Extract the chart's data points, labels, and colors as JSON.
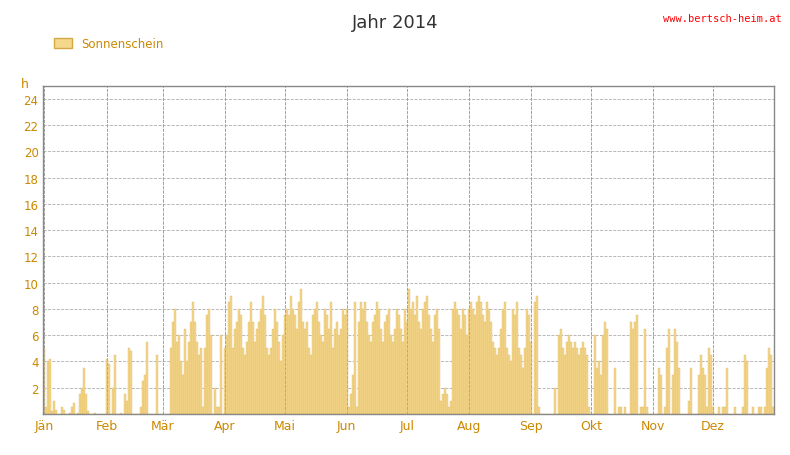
{
  "title": "Jahr 2014",
  "ylabel": "h",
  "legend_label": "Sonnenschein",
  "bar_color": "#f5d88e",
  "bar_edge_color": "#d4a843",
  "background_color": "#ffffff",
  "plot_bg_color": "#ffffff",
  "grid_color": "#999999",
  "title_color": "#333333",
  "label_color": "#cc8800",
  "watermark": "www.bertsch-heim.at",
  "watermark_color": "#ff0000",
  "ylim": [
    0,
    25
  ],
  "yticks": [
    0,
    2,
    4,
    6,
    8,
    10,
    12,
    14,
    16,
    18,
    20,
    22,
    24
  ],
  "month_labels": [
    "Jän",
    "Feb",
    "Mär",
    "Apr",
    "Mai",
    "Jun",
    "Jul",
    "Aug",
    "Sep",
    "Okt",
    "Nov",
    "Dez"
  ],
  "month_starts": [
    0,
    31,
    59,
    90,
    120,
    151,
    181,
    212,
    243,
    273,
    304,
    334
  ],
  "sunshine_hours": [
    5.0,
    0.5,
    4.0,
    4.2,
    0.2,
    1.0,
    0.3,
    0.0,
    0.0,
    0.5,
    0.3,
    0.0,
    0.0,
    0.1,
    0.5,
    0.8,
    0.0,
    0.1,
    1.5,
    2.0,
    3.5,
    1.5,
    0.2,
    0.0,
    0.0,
    0.1,
    0.0,
    0.0,
    0.0,
    0.0,
    0.0,
    4.2,
    3.8,
    0.0,
    2.0,
    4.5,
    0.0,
    0.0,
    0.1,
    0.0,
    1.5,
    1.0,
    5.0,
    4.8,
    0.0,
    0.0,
    0.0,
    0.0,
    0.5,
    2.5,
    3.0,
    5.5,
    0.0,
    0.0,
    0.0,
    0.0,
    4.5,
    0.0,
    0.0,
    0.0,
    0.0,
    0.0,
    0.0,
    5.0,
    7.0,
    8.0,
    5.5,
    6.0,
    4.0,
    3.0,
    6.5,
    4.0,
    5.5,
    7.0,
    8.5,
    7.0,
    5.5,
    4.5,
    5.0,
    0.5,
    5.0,
    7.5,
    8.0,
    6.0,
    0.0,
    2.0,
    0.5,
    0.5,
    6.0,
    0.0,
    5.0,
    6.0,
    8.5,
    9.0,
    5.0,
    6.5,
    7.0,
    8.0,
    7.5,
    5.0,
    4.5,
    5.5,
    7.0,
    8.5,
    7.0,
    5.5,
    6.5,
    7.0,
    8.0,
    9.0,
    7.5,
    5.0,
    4.5,
    5.0,
    6.5,
    8.0,
    7.0,
    5.5,
    4.0,
    6.0,
    7.5,
    8.0,
    7.5,
    9.0,
    8.0,
    7.5,
    6.5,
    8.5,
    9.5,
    7.0,
    6.5,
    7.0,
    5.0,
    4.5,
    7.5,
    8.0,
    8.5,
    7.0,
    6.0,
    5.5,
    8.0,
    7.5,
    6.5,
    8.5,
    5.0,
    6.5,
    7.0,
    6.0,
    6.5,
    8.0,
    7.5,
    8.0,
    0.5,
    1.5,
    3.0,
    8.5,
    0.5,
    7.0,
    8.5,
    8.0,
    8.5,
    7.0,
    6.0,
    5.5,
    7.0,
    7.5,
    8.5,
    8.0,
    6.5,
    5.5,
    7.0,
    7.5,
    8.0,
    6.0,
    5.5,
    6.5,
    8.0,
    7.5,
    6.5,
    5.5,
    8.0,
    7.0,
    9.5,
    8.0,
    8.5,
    7.5,
    9.0,
    7.0,
    6.5,
    8.0,
    8.5,
    9.0,
    7.5,
    6.5,
    5.5,
    7.5,
    8.0,
    6.5,
    1.0,
    1.5,
    2.0,
    1.5,
    0.5,
    1.0,
    8.0,
    8.5,
    8.0,
    7.5,
    6.5,
    8.0,
    7.5,
    6.0,
    8.0,
    8.5,
    8.0,
    7.5,
    8.5,
    9.0,
    8.5,
    7.5,
    7.0,
    8.5,
    8.0,
    7.0,
    5.5,
    5.0,
    4.5,
    5.0,
    6.5,
    8.0,
    8.5,
    5.0,
    4.5,
    4.0,
    8.0,
    7.5,
    8.5,
    5.0,
    4.5,
    3.5,
    5.0,
    8.0,
    7.5,
    5.5,
    0.0,
    8.5,
    9.0,
    0.5,
    0.0,
    0.0,
    0.0,
    0.0,
    0.0,
    0.0,
    0.0,
    2.0,
    0.0,
    6.0,
    6.5,
    5.0,
    4.5,
    5.5,
    6.0,
    5.5,
    5.0,
    5.5,
    5.0,
    4.5,
    5.0,
    5.5,
    5.0,
    4.5,
    0.5,
    0.0,
    0.0,
    6.0,
    3.5,
    4.0,
    3.0,
    6.0,
    7.0,
    6.5,
    0.0,
    0.0,
    0.0,
    3.5,
    0.0,
    0.5,
    0.5,
    0.0,
    0.5,
    0.0,
    0.0,
    7.0,
    6.5,
    7.0,
    7.5,
    0.0,
    0.5,
    0.5,
    6.5,
    0.5,
    0.0,
    0.0,
    0.0,
    0.0,
    0.0,
    3.5,
    3.0,
    0.0,
    0.5,
    5.0,
    6.5,
    0.0,
    3.0,
    6.5,
    5.5,
    3.5,
    0.0,
    0.0,
    0.0,
    0.0,
    1.0,
    3.5,
    0.0,
    0.0,
    0.0,
    3.0,
    4.5,
    3.5,
    3.0,
    0.5,
    5.0,
    4.5,
    0.5,
    0.0,
    0.0,
    0.5,
    0.0,
    0.5,
    0.5,
    3.5,
    0.0,
    0.0,
    0.0,
    0.5,
    0.0,
    0.0,
    0.0,
    0.5,
    4.5,
    4.0,
    0.0,
    0.0,
    0.5,
    0.0,
    0.0,
    0.5,
    0.5,
    0.0,
    0.5,
    3.5,
    5.0,
    4.5,
    0.5,
    0.0
  ]
}
